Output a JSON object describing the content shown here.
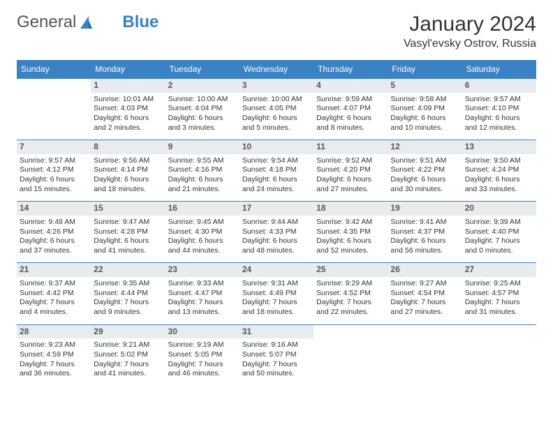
{
  "logo": {
    "text1": "General",
    "text2": "Blue"
  },
  "title": "January 2024",
  "location": "Vasyl'evsky Ostrov, Russia",
  "style": {
    "header_bg": "#3b82c4",
    "header_fg": "#ffffff",
    "daynum_bg": "#e9ecef",
    "border_color": "#3b82c4",
    "page_bg": "#ffffff",
    "text_color": "#333333",
    "title_fontsize": 30,
    "location_fontsize": 16,
    "cell_fontsize": 10.5
  },
  "day_headers": [
    "Sunday",
    "Monday",
    "Tuesday",
    "Wednesday",
    "Thursday",
    "Friday",
    "Saturday"
  ],
  "weeks": [
    [
      null,
      {
        "n": "1",
        "sunrise": "10:01 AM",
        "sunset": "4:03 PM",
        "daylight": "6 hours and 2 minutes."
      },
      {
        "n": "2",
        "sunrise": "10:00 AM",
        "sunset": "4:04 PM",
        "daylight": "6 hours and 3 minutes."
      },
      {
        "n": "3",
        "sunrise": "10:00 AM",
        "sunset": "4:05 PM",
        "daylight": "6 hours and 5 minutes."
      },
      {
        "n": "4",
        "sunrise": "9:59 AM",
        "sunset": "4:07 PM",
        "daylight": "6 hours and 8 minutes."
      },
      {
        "n": "5",
        "sunrise": "9:58 AM",
        "sunset": "4:09 PM",
        "daylight": "6 hours and 10 minutes."
      },
      {
        "n": "6",
        "sunrise": "9:57 AM",
        "sunset": "4:10 PM",
        "daylight": "6 hours and 12 minutes."
      }
    ],
    [
      {
        "n": "7",
        "sunrise": "9:57 AM",
        "sunset": "4:12 PM",
        "daylight": "6 hours and 15 minutes."
      },
      {
        "n": "8",
        "sunrise": "9:56 AM",
        "sunset": "4:14 PM",
        "daylight": "6 hours and 18 minutes."
      },
      {
        "n": "9",
        "sunrise": "9:55 AM",
        "sunset": "4:16 PM",
        "daylight": "6 hours and 21 minutes."
      },
      {
        "n": "10",
        "sunrise": "9:54 AM",
        "sunset": "4:18 PM",
        "daylight": "6 hours and 24 minutes."
      },
      {
        "n": "11",
        "sunrise": "9:52 AM",
        "sunset": "4:20 PM",
        "daylight": "6 hours and 27 minutes."
      },
      {
        "n": "12",
        "sunrise": "9:51 AM",
        "sunset": "4:22 PM",
        "daylight": "6 hours and 30 minutes."
      },
      {
        "n": "13",
        "sunrise": "9:50 AM",
        "sunset": "4:24 PM",
        "daylight": "6 hours and 33 minutes."
      }
    ],
    [
      {
        "n": "14",
        "sunrise": "9:48 AM",
        "sunset": "4:26 PM",
        "daylight": "6 hours and 37 minutes."
      },
      {
        "n": "15",
        "sunrise": "9:47 AM",
        "sunset": "4:28 PM",
        "daylight": "6 hours and 41 minutes."
      },
      {
        "n": "16",
        "sunrise": "9:45 AM",
        "sunset": "4:30 PM",
        "daylight": "6 hours and 44 minutes."
      },
      {
        "n": "17",
        "sunrise": "9:44 AM",
        "sunset": "4:33 PM",
        "daylight": "6 hours and 48 minutes."
      },
      {
        "n": "18",
        "sunrise": "9:42 AM",
        "sunset": "4:35 PM",
        "daylight": "6 hours and 52 minutes."
      },
      {
        "n": "19",
        "sunrise": "9:41 AM",
        "sunset": "4:37 PM",
        "daylight": "6 hours and 56 minutes."
      },
      {
        "n": "20",
        "sunrise": "9:39 AM",
        "sunset": "4:40 PM",
        "daylight": "7 hours and 0 minutes."
      }
    ],
    [
      {
        "n": "21",
        "sunrise": "9:37 AM",
        "sunset": "4:42 PM",
        "daylight": "7 hours and 4 minutes."
      },
      {
        "n": "22",
        "sunrise": "9:35 AM",
        "sunset": "4:44 PM",
        "daylight": "7 hours and 9 minutes."
      },
      {
        "n": "23",
        "sunrise": "9:33 AM",
        "sunset": "4:47 PM",
        "daylight": "7 hours and 13 minutes."
      },
      {
        "n": "24",
        "sunrise": "9:31 AM",
        "sunset": "4:49 PM",
        "daylight": "7 hours and 18 minutes."
      },
      {
        "n": "25",
        "sunrise": "9:29 AM",
        "sunset": "4:52 PM",
        "daylight": "7 hours and 22 minutes."
      },
      {
        "n": "26",
        "sunrise": "9:27 AM",
        "sunset": "4:54 PM",
        "daylight": "7 hours and 27 minutes."
      },
      {
        "n": "27",
        "sunrise": "9:25 AM",
        "sunset": "4:57 PM",
        "daylight": "7 hours and 31 minutes."
      }
    ],
    [
      {
        "n": "28",
        "sunrise": "9:23 AM",
        "sunset": "4:59 PM",
        "daylight": "7 hours and 36 minutes."
      },
      {
        "n": "29",
        "sunrise": "9:21 AM",
        "sunset": "5:02 PM",
        "daylight": "7 hours and 41 minutes."
      },
      {
        "n": "30",
        "sunrise": "9:19 AM",
        "sunset": "5:05 PM",
        "daylight": "7 hours and 46 minutes."
      },
      {
        "n": "31",
        "sunrise": "9:16 AM",
        "sunset": "5:07 PM",
        "daylight": "7 hours and 50 minutes."
      },
      null,
      null,
      null
    ]
  ],
  "labels": {
    "sunrise": "Sunrise: ",
    "sunset": "Sunset: ",
    "daylight": "Daylight: "
  }
}
